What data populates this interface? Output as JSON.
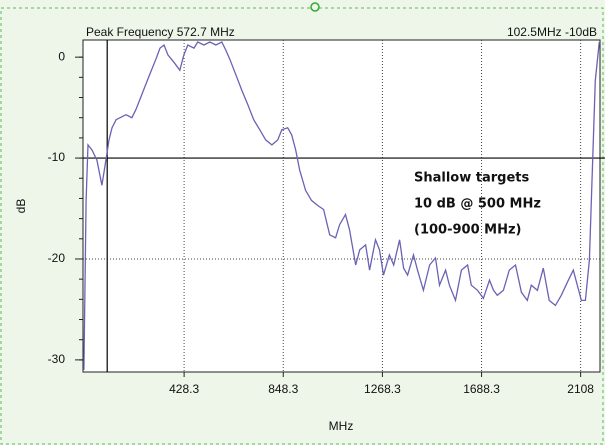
{
  "chart_data": {
    "type": "line",
    "header_left": "Peak Frequency 572.7 MHz",
    "header_right": "102.5MHz -10dB",
    "xlabel": "MHz",
    "ylabel": "dB",
    "annotation": [
      "Shallow targets",
      "10 dB @ 500 MHz",
      "(100-900 MHz)"
    ],
    "xlim": [
      0,
      2190
    ],
    "ylim": [
      -31.2,
      1.7
    ],
    "xticks": [
      428.3,
      848.3,
      1268.3,
      1688.3,
      2108
    ],
    "yticks": [
      0,
      -10,
      -20,
      -30
    ],
    "x_gridlines": [
      428.3,
      848.3,
      1268.3,
      1688.3,
      2108
    ],
    "y_gridlines": [
      -20
    ],
    "marker_x": 102.5,
    "marker_y": -10,
    "series": [
      {
        "color": "#6a62b4",
        "x": [
          4,
          13,
          21,
          38,
          59,
          80,
          97,
          110,
          123,
          140,
          157,
          182,
          207,
          224,
          241,
          266,
          283,
          309,
          326,
          343,
          360,
          385,
          410,
          427,
          444,
          470,
          486,
          512,
          537,
          563,
          588,
          605,
          622,
          647,
          673,
          698,
          723,
          749,
          774,
          800,
          825,
          842,
          867,
          884,
          901,
          918,
          943,
          968,
          994,
          1019,
          1045,
          1070,
          1087,
          1112,
          1129,
          1155,
          1172,
          1197,
          1214,
          1239,
          1256,
          1273,
          1298,
          1316,
          1341,
          1358,
          1375,
          1400,
          1417,
          1442,
          1468,
          1493,
          1510,
          1536,
          1552,
          1578,
          1603,
          1629,
          1645,
          1671,
          1696,
          1722,
          1739,
          1755,
          1781,
          1806,
          1832,
          1857,
          1882,
          1899,
          1925,
          1950,
          1975,
          2001,
          2026,
          2052,
          2077,
          2094,
          2111,
          2128,
          2145,
          2170,
          2187
        ],
        "values": [
          -31.0,
          -14.2,
          -8.7,
          -9.2,
          -10.2,
          -12.7,
          -10.2,
          -8.2,
          -7.0,
          -6.2,
          -6.0,
          -5.7,
          -6.0,
          -5.2,
          -4.2,
          -2.7,
          -1.7,
          -0.2,
          0.9,
          1.2,
          0.2,
          -0.5,
          -1.3,
          0.2,
          1.2,
          0.9,
          1.5,
          1.2,
          1.5,
          1.2,
          1.5,
          0.7,
          -0.2,
          -1.7,
          -3.3,
          -4.7,
          -6.2,
          -7.2,
          -8.2,
          -8.7,
          -8.2,
          -7.2,
          -7.0,
          -7.7,
          -9.2,
          -11.2,
          -13.2,
          -14.2,
          -14.7,
          -15.1,
          -17.6,
          -17.9,
          -16.6,
          -15.6,
          -17.1,
          -20.6,
          -19.1,
          -18.6,
          -21.1,
          -18.1,
          -19.1,
          -21.6,
          -19.6,
          -20.6,
          -18.1,
          -20.9,
          -21.6,
          -19.6,
          -21.1,
          -23.1,
          -20.6,
          -19.9,
          -22.6,
          -21.1,
          -22.6,
          -24.1,
          -21.1,
          -20.6,
          -22.6,
          -23.1,
          -23.9,
          -22.1,
          -23.1,
          -23.6,
          -23.1,
          -21.1,
          -20.6,
          -23.3,
          -24.1,
          -22.6,
          -23.1,
          -20.9,
          -24.1,
          -24.6,
          -23.6,
          -22.3,
          -21.1,
          -22.6,
          -24.1,
          -24.1,
          -20.1,
          -2.3,
          1.5
        ]
      }
    ]
  }
}
